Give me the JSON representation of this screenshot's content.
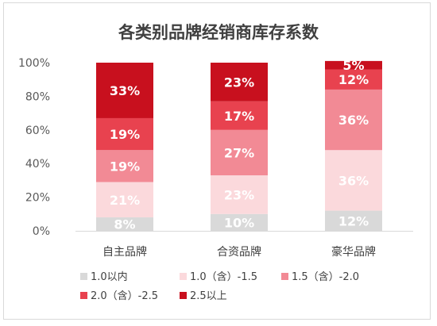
{
  "chart_data": {
    "type": "bar",
    "stacked": true,
    "percent_stacked": true,
    "title": "各类别品牌经销商库存系数",
    "categories": [
      "自主品牌",
      "合资品牌",
      "豪华品牌"
    ],
    "yticks": [
      "0%",
      "20%",
      "40%",
      "60%",
      "80%",
      "100%"
    ],
    "ylim": [
      0,
      100
    ],
    "legend_position": "bottom",
    "series": [
      {
        "name": "1.0以内",
        "color": "#d9d9d9",
        "label_color": "#ffffff",
        "values": [
          8,
          10,
          12
        ],
        "labels": [
          "8%",
          "10%",
          "12%"
        ]
      },
      {
        "name": "1.0（含）-1.5",
        "color": "#fbd9dc",
        "label_color": "#ffffff",
        "values": [
          21,
          23,
          36
        ],
        "labels": [
          "21%",
          "23%",
          "36%"
        ]
      },
      {
        "name": "1.5（含）-2.0",
        "color": "#f28a95",
        "label_color": "#ffffff",
        "values": [
          19,
          27,
          36
        ],
        "labels": [
          "19%",
          "27%",
          "36%"
        ]
      },
      {
        "name": "2.0（含）-2.5",
        "color": "#e8424f",
        "label_color": "#ffffff",
        "values": [
          19,
          17,
          12
        ],
        "labels": [
          "19%",
          "17%",
          "12%"
        ]
      },
      {
        "name": "2.5以上",
        "color": "#c8101e",
        "label_color": "#ffffff",
        "values": [
          33,
          23,
          5
        ],
        "labels": [
          "33%",
          "23%",
          "5%"
        ]
      }
    ]
  }
}
